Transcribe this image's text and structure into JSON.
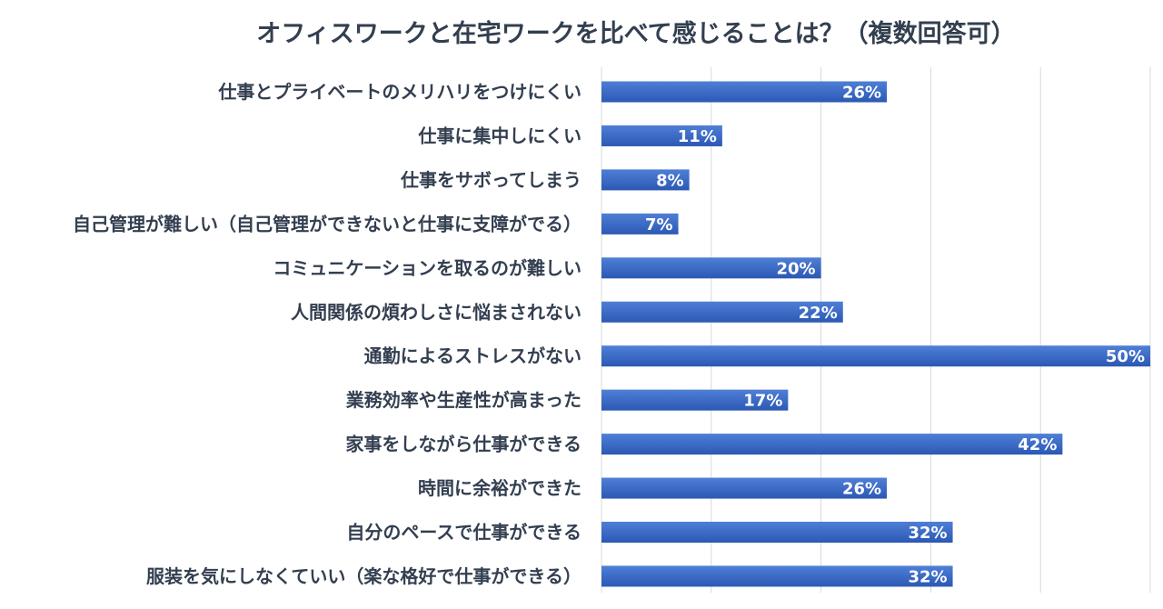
{
  "chart_data": {
    "type": "bar",
    "orientation": "horizontal",
    "title": "オフィスワークと在宅ワークを比べて感じることは？（複数回答可）",
    "categories": [
      "仕事とプライベートのメリハリをつけにくい",
      "仕事に集中しにくい",
      "仕事をサボってしまう",
      "自己管理が難しい（自己管理ができないと仕事に支障がでる）",
      "コミュニケーションを取るのが難しい",
      "人間関係の煩わしさに悩まされない",
      "通勤によるストレスがない",
      "業務効率や生産性が高まった",
      "家事をしながら仕事ができる",
      "時間に余裕ができた",
      "自分のペースで仕事ができる",
      "服装を気にしなくていい（楽な格好で仕事ができる）"
    ],
    "values": [
      26,
      11,
      8,
      7,
      20,
      22,
      50,
      17,
      42,
      26,
      32,
      32
    ],
    "value_labels": [
      "26%",
      "11%",
      "8%",
      "7%",
      "20%",
      "22%",
      "50%",
      "17%",
      "42%",
      "26%",
      "32%",
      "32%"
    ],
    "xlim": [
      0,
      50
    ],
    "grid": true,
    "legend": "none",
    "colors": {
      "bar_top": "#4f7fd6",
      "bar_bottom": "#2b58b4",
      "gridline": "#d9d9d9",
      "label_text": "#333f50",
      "value_text": "#ffffff",
      "title_text": "#333f50"
    }
  }
}
